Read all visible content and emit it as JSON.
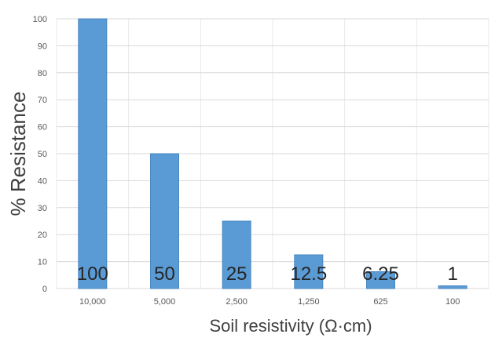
{
  "chart_data": {
    "type": "bar",
    "categories": [
      "10,000",
      "5,000",
      "2,500",
      "1,250",
      "625",
      "100"
    ],
    "values": [
      100,
      50,
      25,
      12.5,
      6.25,
      1
    ],
    "data_labels": [
      "100",
      "50",
      "25",
      "12.5",
      "6.25",
      "1"
    ],
    "title": "",
    "xlabel": "Soil resistivity (Ω·cm)",
    "ylabel": "% Resistance",
    "ylim": [
      0,
      100
    ],
    "yticks": [
      0,
      10,
      20,
      30,
      40,
      50,
      60,
      70,
      80,
      90,
      100
    ],
    "grid": true,
    "legend": "none",
    "colors": {
      "bar": "#5b9bd5",
      "bar_stroke": "#4a87c0",
      "grid": "#d9d9d9",
      "tick_text": "#595959",
      "axis_title": "#404040",
      "data_label": "#262626"
    }
  }
}
